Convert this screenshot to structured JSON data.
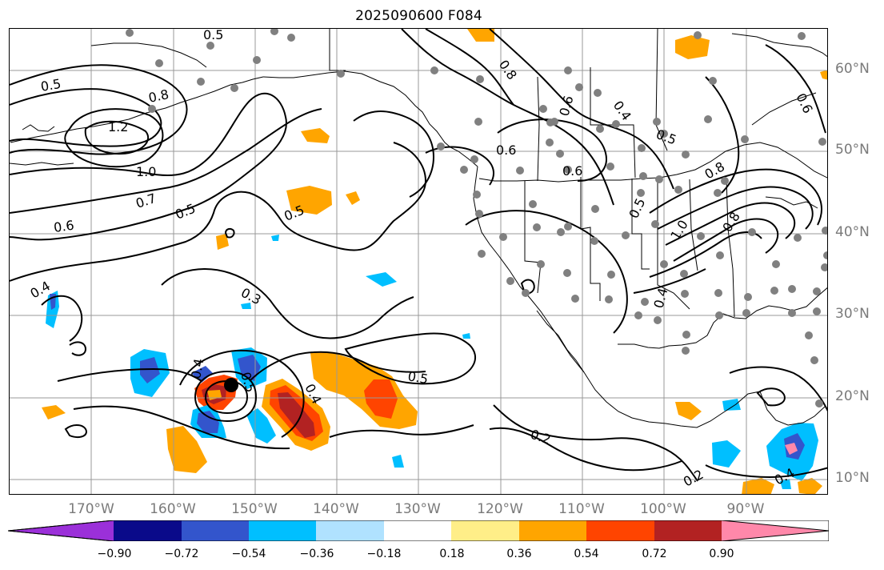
{
  "title": "2025090600 F084",
  "lon_labels": [
    "170°W",
    "160°W",
    "150°W",
    "140°W",
    "130°W",
    "120°W",
    "110°W",
    "100°W",
    "90°W"
  ],
  "lat_labels": [
    "60°N",
    "50°N",
    "40°N",
    "30°N",
    "20°N",
    "10°N"
  ],
  "contour_labels": [
    "0.5",
    "0.5",
    "0.8",
    "1.2",
    "1.0",
    "0.7",
    "0.6",
    "0.5",
    "0.5",
    "0.4",
    "0.3",
    "0.4",
    "0.5",
    "0.4",
    "0.5",
    "0.2",
    "0.2",
    "0.6",
    "0.6",
    "0.5",
    "0.4",
    "0.8",
    "1.0",
    "0.8",
    "0.6",
    "0.4",
    "0.5",
    "0.4",
    "0.6",
    "0.8"
  ],
  "colorbar": {
    "ticks": [
      "−0.90",
      "−0.72",
      "−0.54",
      "−0.36",
      "−0.18",
      "0.18",
      "0.36",
      "0.54",
      "0.72",
      "0.90"
    ],
    "colors": [
      "#9b30d9",
      "#0a0a8a",
      "#3355cc",
      "#00bfff",
      "#b0e2ff",
      "#ffffff",
      "#ffee88",
      "#ffa500",
      "#ff4400",
      "#b22222",
      "#ff88aa"
    ]
  },
  "colors": {
    "contour": "#000000",
    "station_dots": "#808080",
    "storm_center": "#000000",
    "grid": "#999999",
    "axis_labels": "#7a7a7a"
  }
}
